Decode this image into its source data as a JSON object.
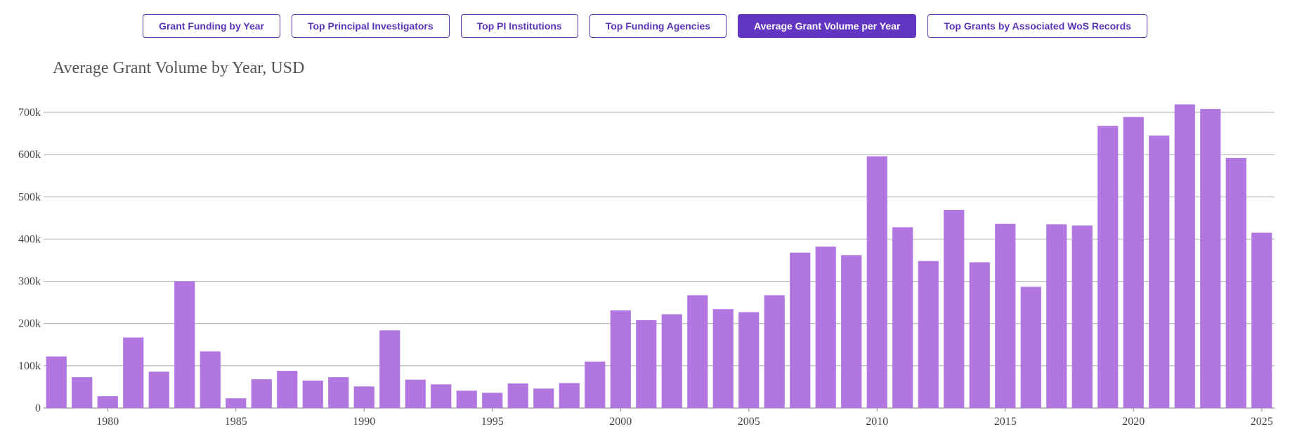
{
  "tabs": [
    {
      "label": "Grant Funding by Year",
      "active": false
    },
    {
      "label": "Top Principal Investigators",
      "active": false
    },
    {
      "label": "Top PI Institutions",
      "active": false
    },
    {
      "label": "Top Funding Agencies",
      "active": false
    },
    {
      "label": "Average Grant Volume per Year",
      "active": true
    },
    {
      "label": "Top Grants by Associated WoS Records",
      "active": false
    }
  ],
  "colors": {
    "accent": "#6236c0",
    "bar": "#b276e0",
    "grid": "#aaaaaa"
  },
  "chart_data": {
    "type": "bar",
    "title": "Average Grant Volume by Year, USD",
    "xlabel": "",
    "ylabel": "",
    "categories": [
      1978,
      1979,
      1980,
      1981,
      1982,
      1983,
      1984,
      1985,
      1986,
      1987,
      1988,
      1989,
      1990,
      1991,
      1992,
      1993,
      1994,
      1995,
      1996,
      1997,
      1998,
      1999,
      2000,
      2001,
      2002,
      2003,
      2004,
      2005,
      2006,
      2007,
      2008,
      2009,
      2010,
      2011,
      2012,
      2013,
      2014,
      2015,
      2016,
      2017,
      2018,
      2019,
      2020,
      2021,
      2022,
      2023,
      2024,
      2025
    ],
    "values": [
      122000,
      73000,
      28000,
      167000,
      86000,
      300000,
      134000,
      23000,
      68000,
      88000,
      65000,
      73000,
      51000,
      184000,
      67000,
      56000,
      41000,
      36000,
      58000,
      46000,
      59000,
      110000,
      231000,
      208000,
      222000,
      267000,
      234000,
      227000,
      267000,
      368000,
      382000,
      362000,
      596000,
      428000,
      348000,
      469000,
      345000,
      436000,
      287000,
      435000,
      432000,
      668000,
      689000,
      645000,
      719000,
      708000,
      592000,
      415000
    ],
    "ylim": [
      0,
      700000
    ],
    "yticks": [
      0,
      100000,
      200000,
      300000,
      400000,
      500000,
      600000,
      700000
    ],
    "ytick_labels": [
      "0",
      "100k",
      "200k",
      "300k",
      "400k",
      "500k",
      "600k",
      "700k"
    ],
    "xticks": [
      1980,
      1985,
      1990,
      1995,
      2000,
      2005,
      2010,
      2015,
      2020,
      2025
    ],
    "xtick_labels": [
      "1980",
      "1985",
      "1990",
      "1995",
      "2000",
      "2005",
      "2010",
      "2015",
      "2020",
      "2025"
    ],
    "grid": true,
    "legend": "none"
  }
}
